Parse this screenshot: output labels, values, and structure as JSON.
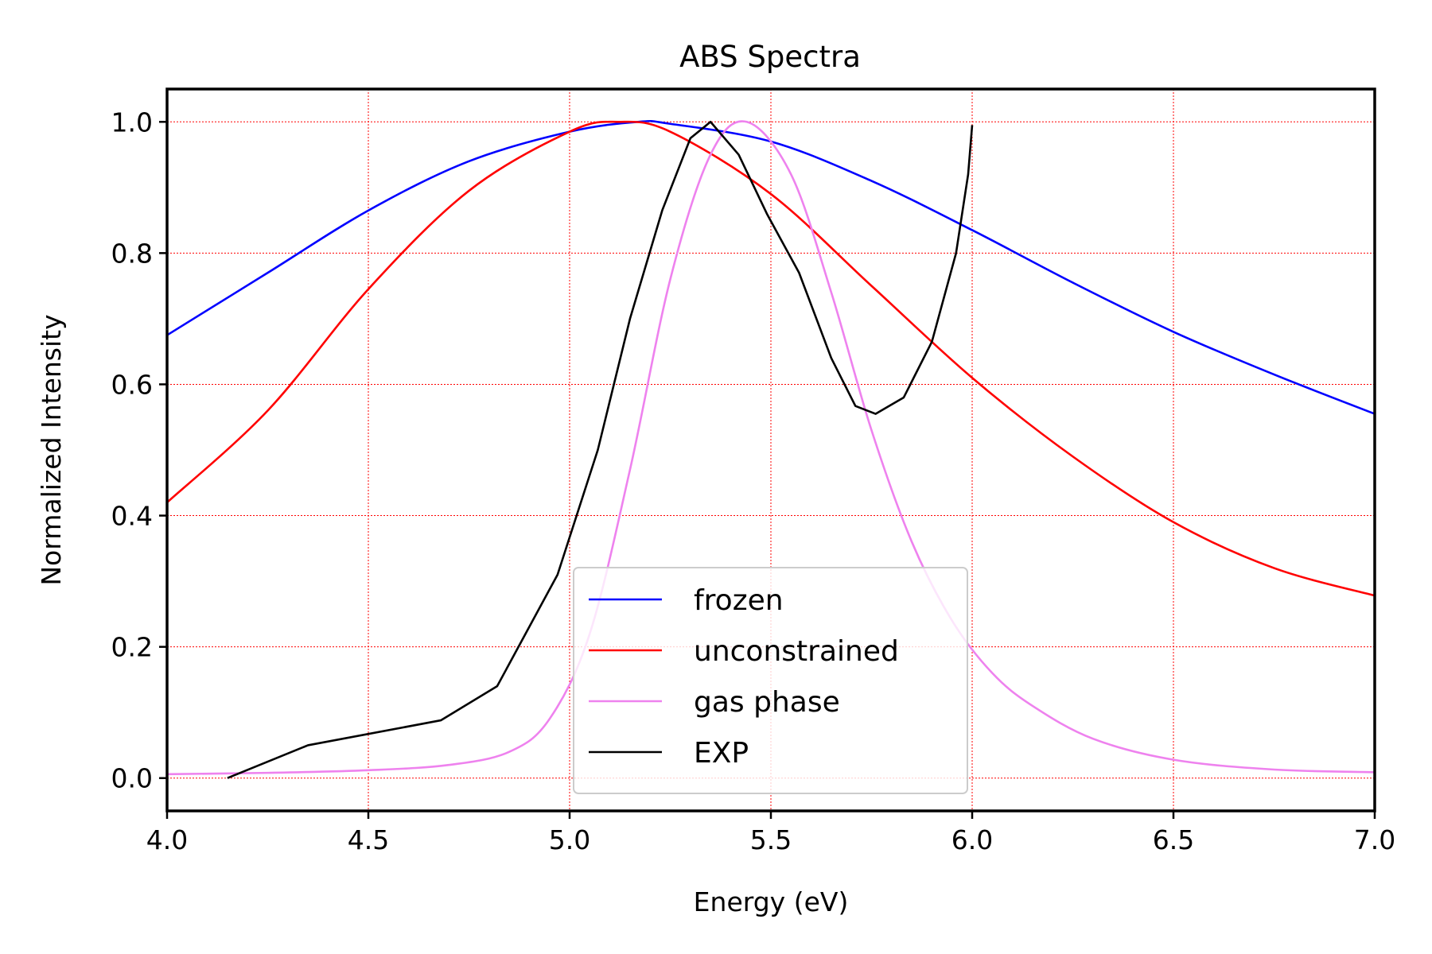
{
  "chart_data": {
    "type": "line",
    "title": "ABS Spectra",
    "xlabel": "Energy (eV)",
    "ylabel": "Normalized Intensity",
    "xlim": [
      4.0,
      7.0
    ],
    "ylim": [
      -0.05,
      1.05
    ],
    "xticks": [
      4.0,
      4.5,
      5.0,
      5.5,
      6.0,
      6.5,
      7.0
    ],
    "xtick_labels": [
      "4.0",
      "4.5",
      "5.0",
      "5.5",
      "6.0",
      "6.5",
      "7.0"
    ],
    "yticks": [
      0.0,
      0.2,
      0.4,
      0.6,
      0.8,
      1.0
    ],
    "ytick_labels": [
      "0.0",
      "0.2",
      "0.4",
      "0.6",
      "0.8",
      "1.0"
    ],
    "grid": true,
    "grid_color": "#ff0000",
    "legend_position": "lower-center",
    "series": [
      {
        "name": "frozen",
        "color": "#0000ff",
        "x": [
          4.0,
          4.25,
          4.5,
          4.75,
          5.0,
          5.17,
          5.25,
          5.5,
          5.75,
          6.0,
          6.25,
          6.5,
          6.75,
          7.0
        ],
        "y": [
          0.675,
          0.77,
          0.865,
          0.94,
          0.985,
          1.0,
          0.997,
          0.97,
          0.91,
          0.835,
          0.755,
          0.68,
          0.615,
          0.555
        ]
      },
      {
        "name": "unconstrained",
        "color": "#ff0000",
        "x": [
          4.0,
          4.25,
          4.5,
          4.75,
          5.0,
          5.12,
          5.25,
          5.5,
          5.75,
          6.0,
          6.25,
          6.5,
          6.75,
          7.0
        ],
        "y": [
          0.42,
          0.56,
          0.745,
          0.895,
          0.985,
          1.0,
          0.985,
          0.89,
          0.75,
          0.61,
          0.49,
          0.39,
          0.32,
          0.278
        ]
      },
      {
        "name": "gas phase",
        "color": "#ee82ee",
        "x": [
          4.0,
          4.25,
          4.5,
          4.7,
          4.85,
          4.95,
          5.05,
          5.15,
          5.25,
          5.35,
          5.44,
          5.55,
          5.65,
          5.75,
          5.85,
          5.95,
          6.05,
          6.15,
          6.3,
          6.5,
          6.75,
          7.0
        ],
        "y": [
          0.006,
          0.008,
          0.012,
          0.02,
          0.04,
          0.09,
          0.22,
          0.47,
          0.76,
          0.95,
          1.0,
          0.92,
          0.74,
          0.53,
          0.36,
          0.24,
          0.16,
          0.11,
          0.06,
          0.028,
          0.013,
          0.009
        ]
      },
      {
        "name": "EXP",
        "color": "#000000",
        "x": [
          4.15,
          4.35,
          4.68,
          4.82,
          4.97,
          5.07,
          5.15,
          5.23,
          5.3,
          5.35,
          5.42,
          5.49,
          5.57,
          5.65,
          5.71,
          5.76,
          5.83,
          5.9,
          5.96,
          5.99,
          6.0
        ],
        "y": [
          0.0,
          0.05,
          0.088,
          0.14,
          0.31,
          0.5,
          0.7,
          0.865,
          0.975,
          1.0,
          0.95,
          0.86,
          0.77,
          0.64,
          0.567,
          0.555,
          0.58,
          0.665,
          0.8,
          0.92,
          0.995
        ]
      }
    ]
  }
}
